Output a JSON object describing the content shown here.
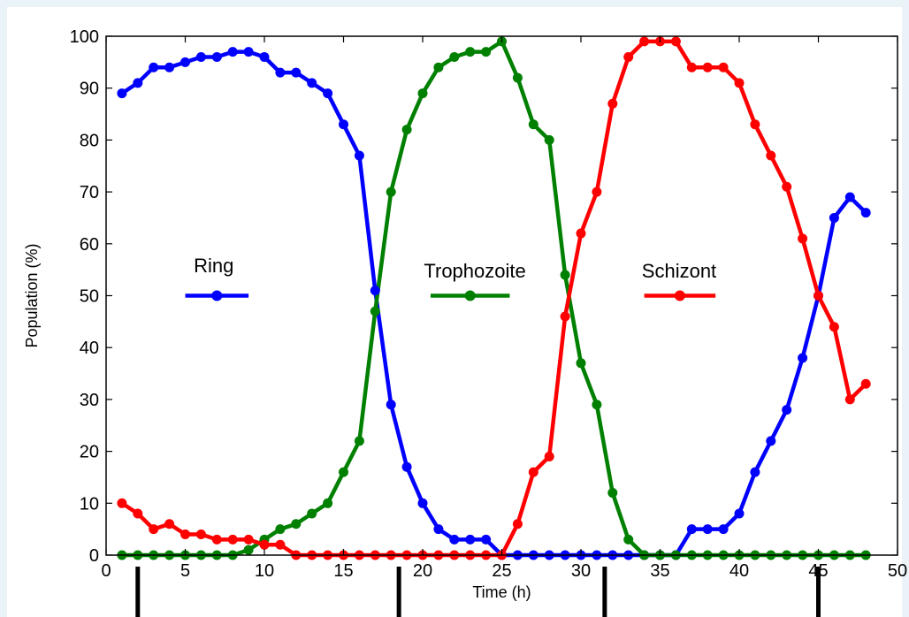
{
  "chart_data": {
    "type": "line",
    "title": "",
    "xlabel": "Time (h)",
    "ylabel": "Population (%)",
    "xlim": [
      0,
      50
    ],
    "ylim": [
      0,
      100
    ],
    "xticks": [
      0,
      5,
      10,
      15,
      20,
      25,
      30,
      35,
      40,
      45,
      50
    ],
    "yticks": [
      0,
      10,
      20,
      30,
      40,
      50,
      60,
      70,
      80,
      90,
      100
    ],
    "grid": false,
    "legend": "inline, across the middle of the plot",
    "x": [
      1,
      2,
      3,
      4,
      5,
      6,
      7,
      8,
      9,
      10,
      11,
      12,
      13,
      14,
      15,
      16,
      17,
      18,
      19,
      20,
      21,
      22,
      23,
      24,
      25,
      26,
      27,
      28,
      29,
      30,
      31,
      32,
      33,
      34,
      35,
      36,
      37,
      38,
      39,
      40,
      41,
      42,
      43,
      44,
      45,
      46,
      47,
      48
    ],
    "series": [
      {
        "name": "Ring",
        "color": "#0000ff",
        "values": [
          89,
          91,
          94,
          94,
          95,
          96,
          96,
          97,
          97,
          96,
          93,
          93,
          91,
          89,
          83,
          77,
          51,
          29,
          17,
          10,
          5,
          3,
          3,
          3,
          0,
          0,
          0,
          0,
          0,
          0,
          0,
          0,
          0,
          0,
          0,
          0,
          5,
          5,
          5,
          8,
          16,
          22,
          28,
          38,
          50,
          65,
          69,
          66
        ]
      },
      {
        "name": "Trophozoite",
        "color": "#008000",
        "values": [
          0,
          0,
          0,
          0,
          0,
          0,
          0,
          0,
          1,
          3,
          5,
          6,
          8,
          10,
          16,
          22,
          47,
          70,
          82,
          89,
          94,
          96,
          97,
          97,
          99,
          92,
          83,
          80,
          54,
          37,
          29,
          12,
          3,
          0,
          0,
          0,
          0,
          0,
          0,
          0,
          0,
          0,
          0,
          0,
          0,
          0,
          0,
          0
        ]
      },
      {
        "name": "Schizont",
        "color": "#ff0000",
        "values": [
          10,
          8,
          5,
          6,
          4,
          4,
          3,
          3,
          3,
          2,
          2,
          0,
          0,
          0,
          0,
          0,
          0,
          0,
          0,
          0,
          0,
          0,
          0,
          0,
          0,
          6,
          16,
          19,
          46,
          62,
          70,
          87,
          96,
          99,
          99,
          99,
          94,
          94,
          94,
          91,
          83,
          77,
          71,
          61,
          50,
          44,
          30,
          33
        ]
      }
    ],
    "markers_below_axis": [
      2,
      18.5,
      31.5,
      45
    ]
  }
}
